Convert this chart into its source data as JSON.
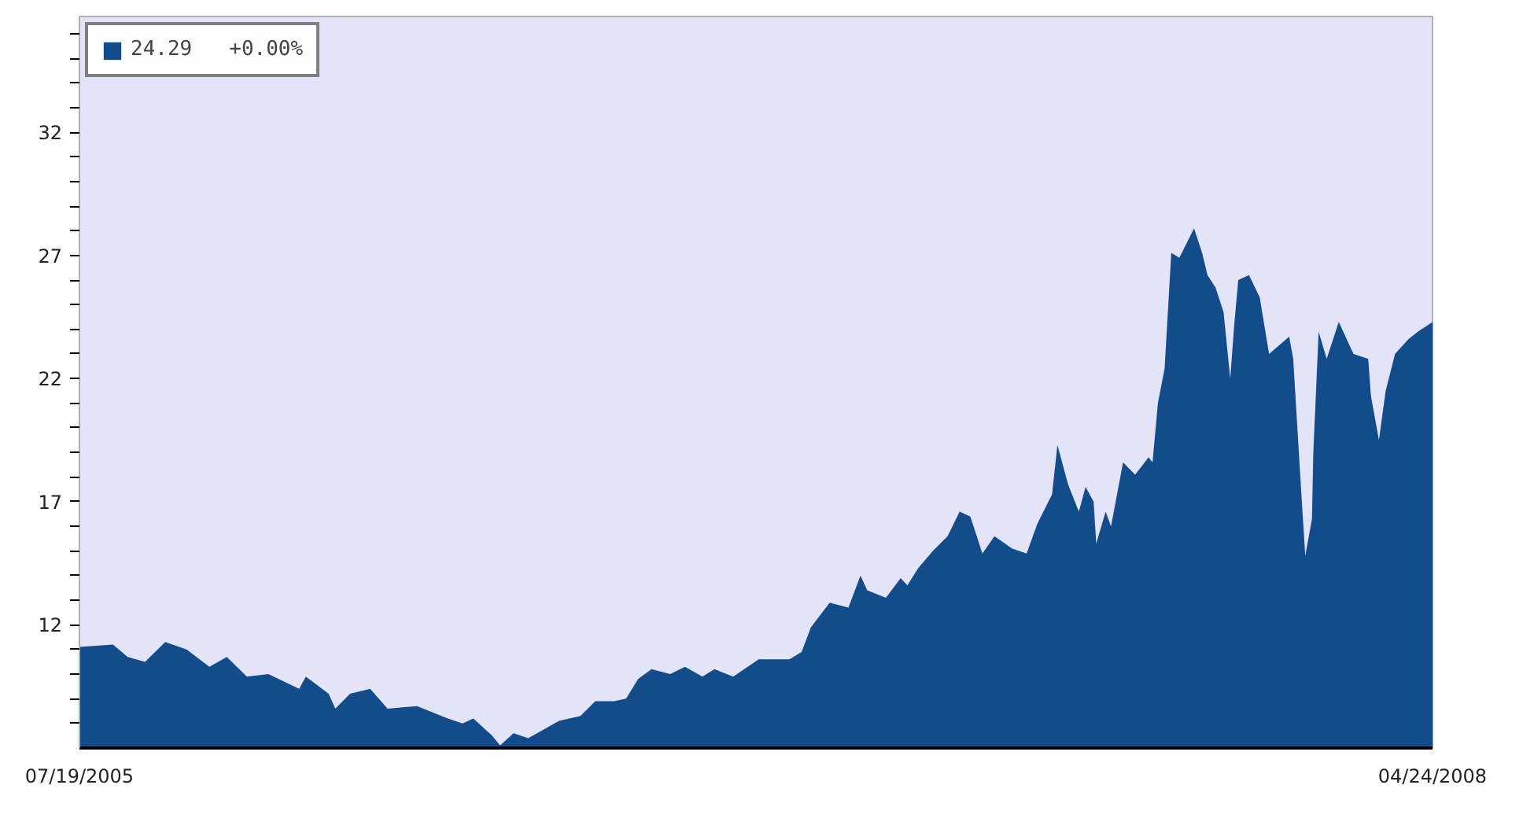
{
  "chart_data": {
    "type": "area",
    "x": [
      "2005-07-19",
      "2005-08-13",
      "2005-08-24",
      "2005-09-06",
      "2005-09-21",
      "2005-10-07",
      "2005-10-24",
      "2005-11-06",
      "2005-11-21",
      "2005-12-07",
      "2005-12-30",
      "2006-01-04",
      "2006-01-21",
      "2006-01-26",
      "2006-02-06",
      "2006-02-21",
      "2006-03-06",
      "2006-03-28",
      "2006-04-20",
      "2006-05-01",
      "2006-05-09",
      "2006-05-23",
      "2006-05-29",
      "2006-06-08",
      "2006-06-19",
      "2006-07-12",
      "2006-07-28",
      "2006-08-08",
      "2006-08-22",
      "2006-08-31",
      "2006-09-09",
      "2006-09-19",
      "2006-10-03",
      "2006-10-14",
      "2006-10-27",
      "2006-11-05",
      "2006-11-19",
      "2006-12-08",
      "2006-12-31",
      "2007-01-09",
      "2007-01-16",
      "2007-01-30",
      "2007-02-13",
      "2007-02-22",
      "2007-02-27",
      "2007-03-13",
      "2007-03-24",
      "2007-03-29",
      "2007-04-06",
      "2007-04-17",
      "2007-04-28",
      "2007-05-07",
      "2007-05-15",
      "2007-05-24",
      "2007-06-02",
      "2007-06-15",
      "2007-06-26",
      "2007-07-04",
      "2007-07-15",
      "2007-07-19",
      "2007-07-27",
      "2007-08-04",
      "2007-08-09",
      "2007-08-15",
      "2007-08-17",
      "2007-08-24",
      "2007-08-28",
      "2007-09-06",
      "2007-09-15",
      "2007-09-25",
      "2007-09-28",
      "2007-10-02",
      "2007-10-07",
      "2007-10-12",
      "2007-10-18",
      "2007-10-29",
      "2007-11-04",
      "2007-11-08",
      "2007-11-14",
      "2007-11-20",
      "2007-11-25",
      "2007-11-28",
      "2007-12-01",
      "2007-12-09",
      "2007-12-17",
      "2007-12-24",
      "2008-01-08",
      "2008-01-11",
      "2008-01-17",
      "2008-01-20",
      "2008-01-25",
      "2008-01-26",
      "2008-01-30",
      "2008-02-05",
      "2008-02-14",
      "2008-02-25",
      "2008-03-07",
      "2008-03-09",
      "2008-03-15",
      "2008-03-20",
      "2008-03-27",
      "2008-04-06",
      "2008-04-13",
      "2008-04-24"
    ],
    "series": [
      {
        "name": "24.29   +0.00%",
        "color": "#134c8a",
        "values": [
          11.1,
          11.2,
          10.7,
          10.5,
          11.3,
          11.0,
          10.3,
          10.7,
          9.9,
          10.0,
          9.4,
          9.9,
          9.2,
          8.6,
          9.2,
          9.4,
          8.6,
          8.7,
          8.2,
          8.0,
          8.2,
          7.5,
          7.1,
          7.6,
          7.4,
          8.1,
          8.3,
          8.9,
          8.9,
          9.0,
          9.8,
          10.2,
          10.0,
          10.3,
          9.9,
          10.2,
          9.9,
          10.6,
          10.6,
          10.9,
          11.9,
          12.9,
          12.7,
          14.0,
          13.4,
          13.1,
          13.9,
          13.6,
          14.3,
          15.0,
          15.6,
          16.6,
          16.4,
          14.9,
          15.6,
          15.1,
          14.9,
          16.1,
          17.3,
          19.3,
          17.7,
          16.6,
          17.6,
          17.0,
          15.3,
          16.6,
          16.0,
          18.6,
          18.1,
          18.8,
          18.6,
          21.0,
          22.4,
          27.1,
          26.9,
          28.1,
          27.1,
          26.2,
          25.7,
          24.7,
          22.0,
          24.2,
          26.0,
          26.2,
          25.3,
          23.0,
          23.7,
          22.8,
          17.4,
          14.8,
          16.3,
          19.0,
          23.9,
          22.8,
          24.3,
          23.0,
          22.8,
          21.3,
          19.5,
          21.5,
          23.0,
          23.6,
          23.9,
          24.29
        ]
      }
    ],
    "xlim": [
      "2005-07-19",
      "2008-04-24"
    ],
    "xticks": [
      {
        "value": "2005-07-19",
        "label": "07/19/2005"
      },
      {
        "value": "2008-04-24",
        "label": "04/24/2008"
      }
    ],
    "ylim": [
      7,
      36.7
    ],
    "yticks": [
      {
        "value": 8,
        "label": null
      },
      {
        "value": 9,
        "label": null
      },
      {
        "value": 10,
        "label": null
      },
      {
        "value": 11,
        "label": null
      },
      12,
      {
        "value": 13,
        "label": null
      },
      {
        "value": 14,
        "label": null
      },
      {
        "value": 15,
        "label": null
      },
      {
        "value": 16,
        "label": null
      },
      17,
      {
        "value": 18,
        "label": null
      },
      {
        "value": 19,
        "label": null
      },
      {
        "value": 20,
        "label": null
      },
      {
        "value": 21,
        "label": null
      },
      22,
      {
        "value": 23,
        "label": null
      },
      {
        "value": 24,
        "label": null
      },
      {
        "value": 25,
        "label": null
      },
      {
        "value": 26,
        "label": null
      },
      27,
      {
        "value": 28,
        "label": null
      },
      {
        "value": 29,
        "label": null
      },
      {
        "value": 30,
        "label": null
      },
      {
        "value": 31,
        "label": null
      },
      32,
      {
        "value": 33,
        "label": null
      },
      {
        "value": 34,
        "label": null
      },
      {
        "value": 35,
        "label": null
      },
      {
        "value": 36,
        "label": null
      }
    ],
    "grid": false,
    "legend": "top left"
  }
}
